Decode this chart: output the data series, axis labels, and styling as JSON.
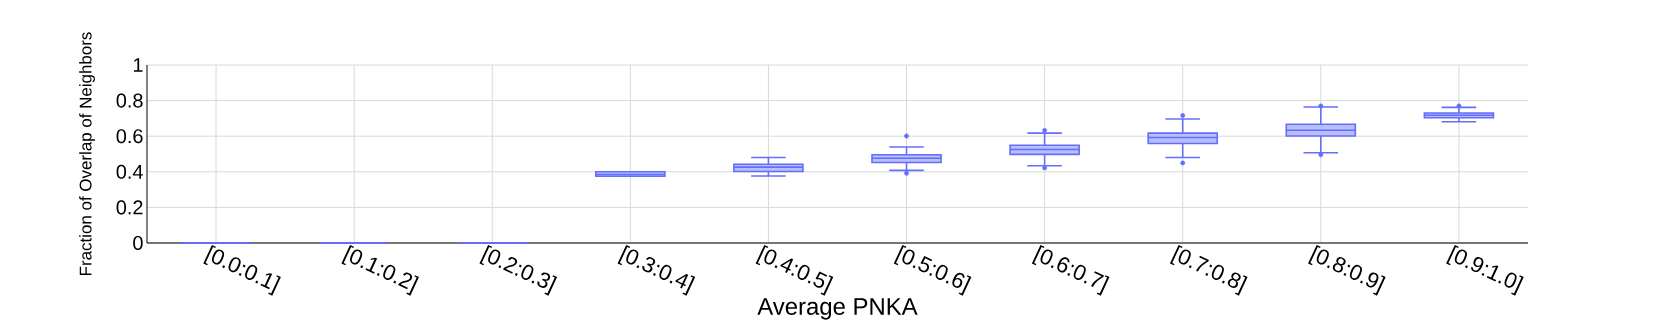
{
  "chart_data": {
    "type": "box",
    "xlabel": "Average PNKA",
    "ylabel": "Fraction of Overlap of Neighbors",
    "categories": [
      "[0.0:0.1]",
      "[0.1:0.2]",
      "[0.2:0.3]",
      "[0.3:0.4]",
      "[0.4:0.5]",
      "[0.5:0.6]",
      "[0.6:0.7]",
      "[0.7:0.8]",
      "[0.8:0.9]",
      "[0.9:1.0]"
    ],
    "boxes": [
      {
        "low": 0,
        "q1": 0,
        "median": 0,
        "q3": 0,
        "high": 0
      },
      {
        "low": 0,
        "q1": 0,
        "median": 0,
        "q3": 0,
        "high": 0
      },
      {
        "low": 0,
        "q1": 0,
        "median": 0,
        "q3": 0,
        "high": 0
      },
      {
        "low": 0.375,
        "q1": 0.375,
        "median": 0.385,
        "q3": 0.4,
        "high": 0.4
      },
      {
        "low": 0.376,
        "q1": 0.402,
        "median": 0.426,
        "q3": 0.442,
        "high": 0.48
      },
      {
        "low": 0.408,
        "q1": 0.452,
        "median": 0.476,
        "q3": 0.496,
        "high": 0.539,
        "outliers": [
          0.392,
          0.601
        ]
      },
      {
        "low": 0.434,
        "q1": 0.498,
        "median": 0.525,
        "q3": 0.549,
        "high": 0.617,
        "outliers": [
          0.422,
          0.633
        ]
      },
      {
        "low": 0.48,
        "q1": 0.559,
        "median": 0.593,
        "q3": 0.617,
        "high": 0.697,
        "outliers": [
          0.45,
          0.716
        ]
      },
      {
        "low": 0.507,
        "q1": 0.601,
        "median": 0.633,
        "q3": 0.667,
        "high": 0.764,
        "outliers": [
          0.496,
          0.77
        ]
      },
      {
        "low": 0.681,
        "q1": 0.704,
        "median": 0.718,
        "q3": 0.73,
        "high": 0.762,
        "outliers": [
          0.77
        ]
      }
    ],
    "color": "#636efa",
    "marker": "circle",
    "ylim": [
      0,
      1
    ],
    "yticks": [
      0,
      0.2,
      0.4,
      0.6,
      0.8,
      1
    ],
    "grid": true
  }
}
